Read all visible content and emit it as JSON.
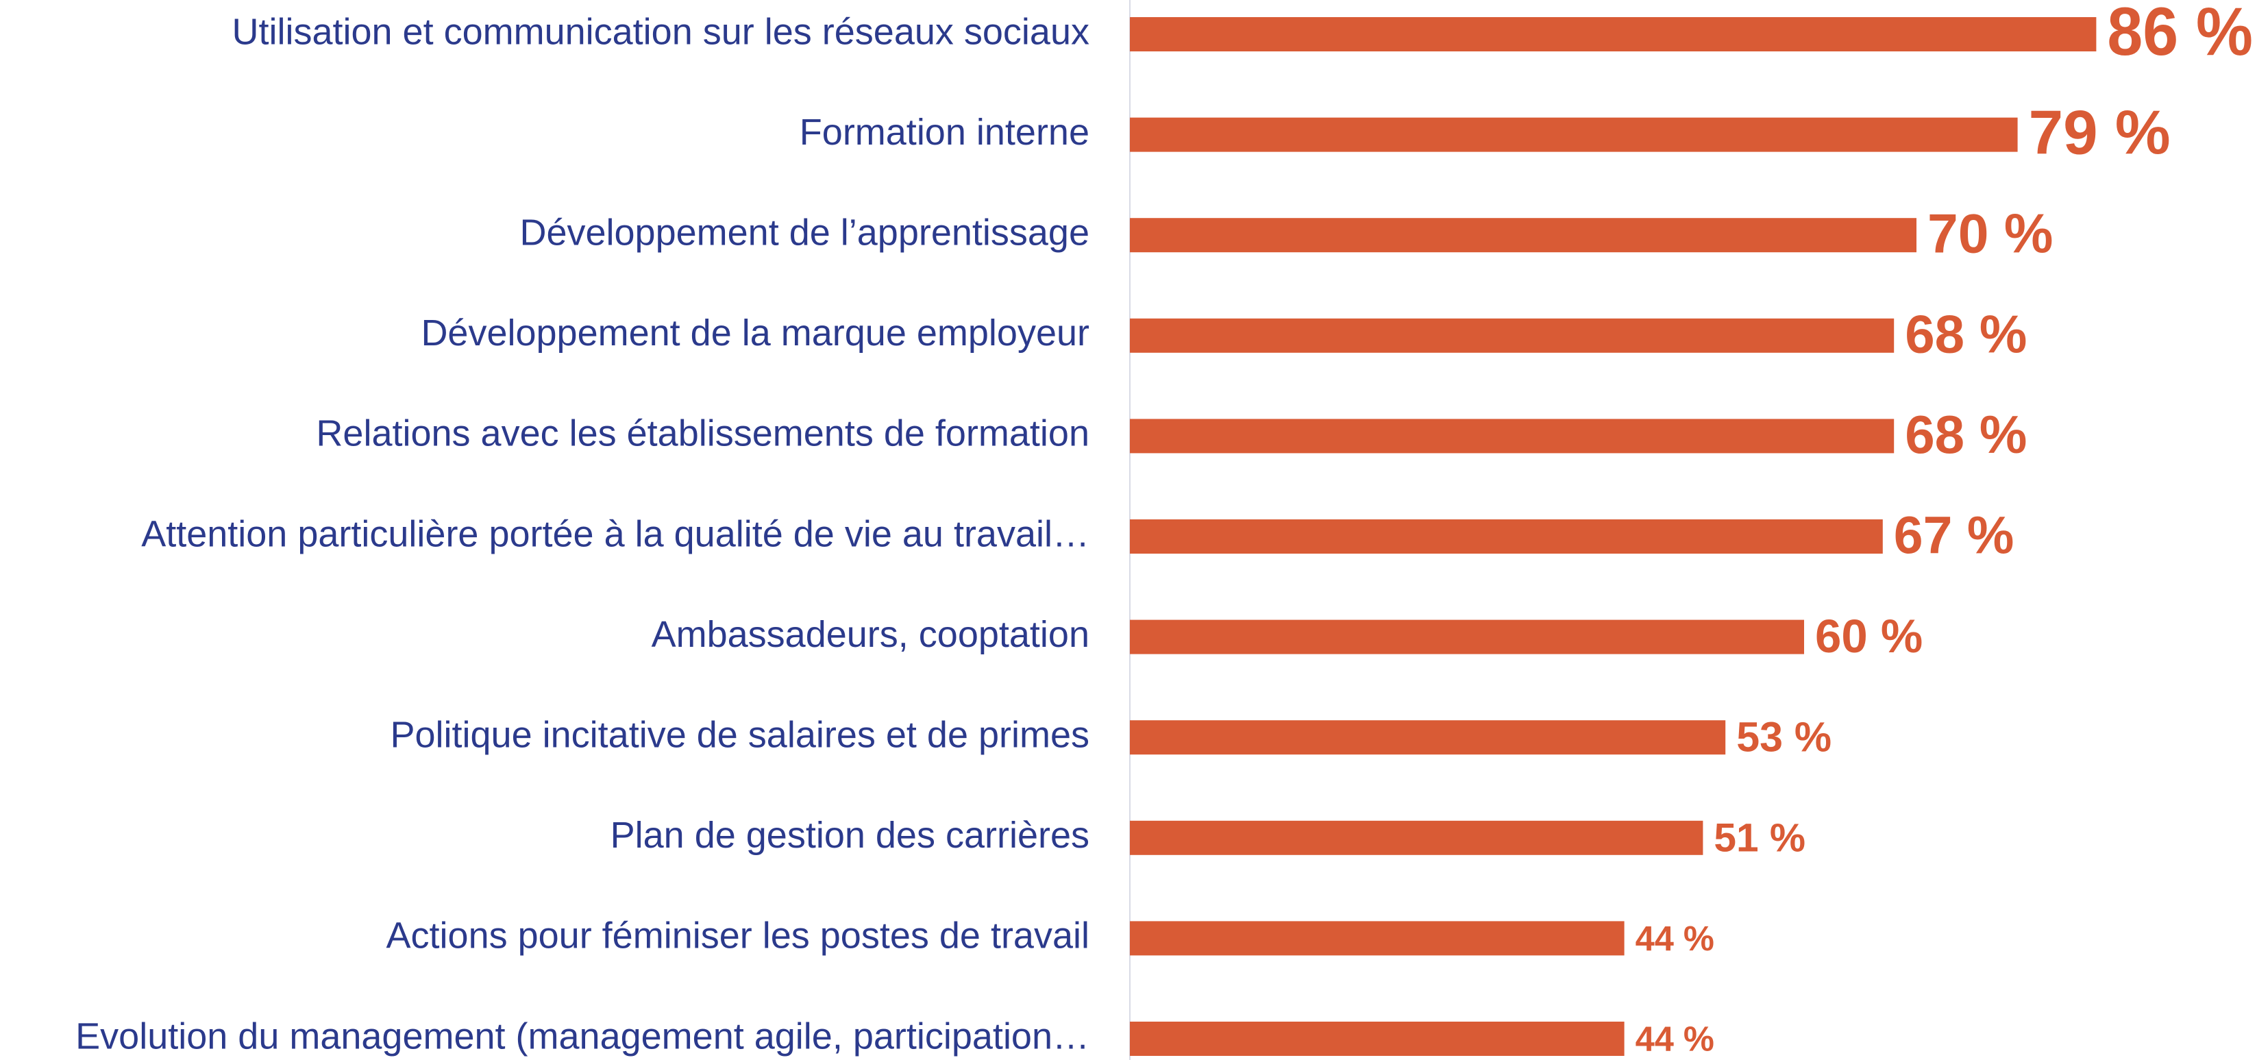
{
  "chart_data": {
    "type": "bar",
    "orientation": "horizontal",
    "categories": [
      "Utilisation et communication sur les réseaux sociaux",
      "Formation interne",
      "Développement de l’apprentissage",
      "Développement de la marque employeur",
      "Relations avec les établissements de formation",
      "Attention particulière portée à la qualité de vie au travail…",
      "Ambassadeurs, cooptation",
      "Politique incitative de salaires et de primes",
      "Plan de gestion des carrières",
      "Actions pour féminiser les postes de travail",
      "Evolution du management (management agile, participation…"
    ],
    "values": [
      86,
      79,
      70,
      68,
      68,
      67,
      60,
      53,
      51,
      44,
      44
    ],
    "value_labels": [
      "86 %",
      "79 %",
      "70 %",
      "68 %",
      "68 %",
      "67 %",
      "60 %",
      "53 %",
      "51 %",
      "44 %",
      "44 %"
    ],
    "color": "#d95b35"
  }
}
